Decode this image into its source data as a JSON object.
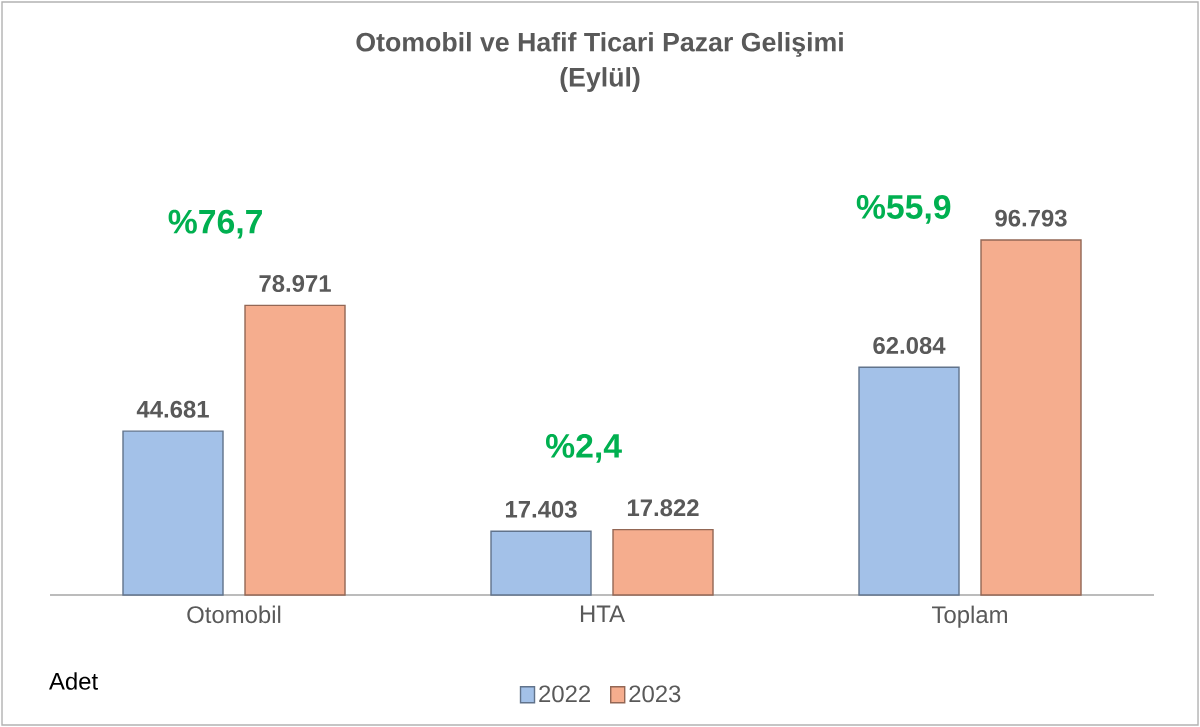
{
  "chart_data": {
    "type": "bar",
    "title": "Otomobil ve Hafif Ticari Pazar Gelişimi",
    "subtitle": "(Eylül)",
    "categories": [
      "Otomobil",
      "HTA",
      "Toplam"
    ],
    "series": [
      {
        "name": "2022",
        "color": "#a3c1e8",
        "values": [
          44681,
          17403,
          62084
        ],
        "value_labels": [
          "44.681",
          "17.403",
          "62.084"
        ]
      },
      {
        "name": "2023",
        "color": "#f5ad8e",
        "values": [
          78971,
          17822,
          96793
        ],
        "value_labels": [
          "78.971",
          "17.822",
          "96.793"
        ]
      }
    ],
    "annotations": [
      "%76,7",
      "%2,4",
      "%55,9",
      "Adet"
    ],
    "legend": "bottom"
  }
}
